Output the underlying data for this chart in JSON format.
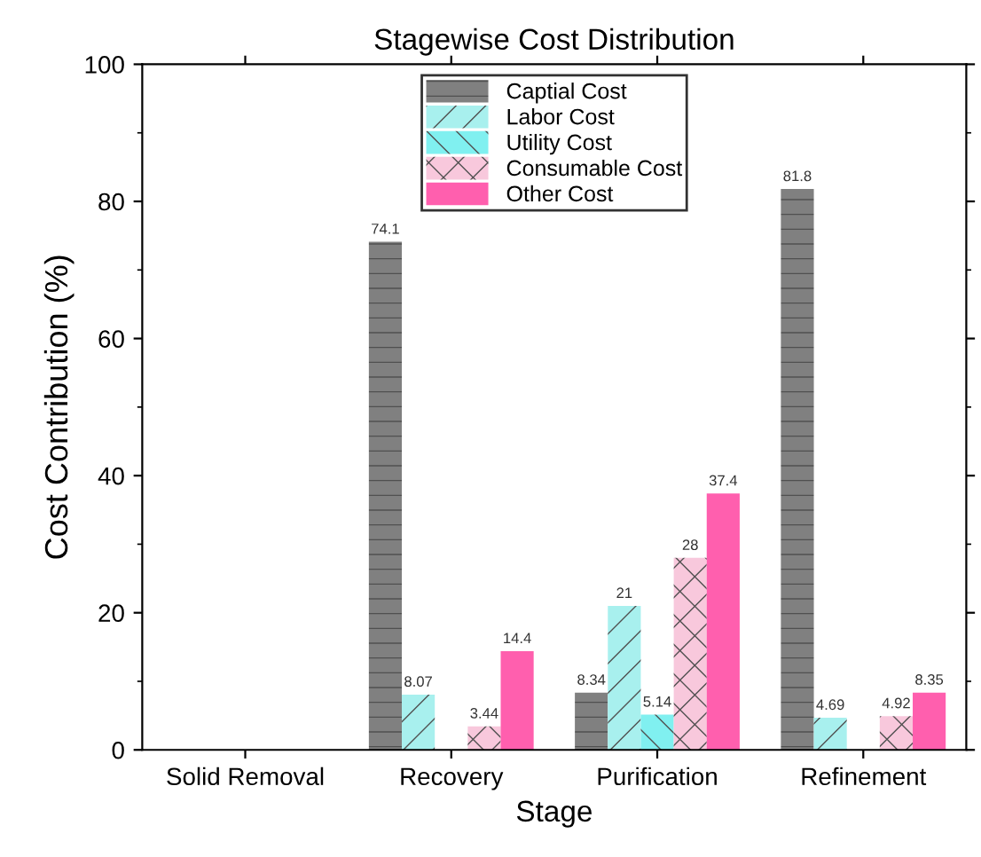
{
  "chart_data": {
    "type": "bar",
    "title": "Stagewise Cost Distribution",
    "xlabel": "Stage",
    "ylabel": "Cost Contribution (%)",
    "categories": [
      "Solid Removal",
      "Recovery",
      "Purification",
      "Refinement"
    ],
    "series": [
      {
        "name": "Captial Cost",
        "color": "#808080",
        "values": [
          null,
          74.1,
          8.34,
          81.8
        ],
        "value_labels": [
          null,
          "74.1",
          "8.34",
          "81.8"
        ]
      },
      {
        "name": "Labor Cost",
        "color": "#a8f0ee",
        "values": [
          null,
          8.07,
          21,
          4.69
        ],
        "value_labels": [
          null,
          "8.07",
          "21",
          "4.69"
        ]
      },
      {
        "name": "Utility Cost",
        "color": "#80f0f0",
        "values": [
          null,
          null,
          5.14,
          0
        ],
        "value_labels": [
          null,
          null,
          "5.14",
          null
        ]
      },
      {
        "name": "Consumable Cost",
        "color": "#f8c8dc",
        "values": [
          null,
          3.44,
          28,
          4.92
        ],
        "value_labels": [
          null,
          "3.44",
          "28",
          "4.92"
        ]
      },
      {
        "name": "Other Cost",
        "color": "#ff5fae",
        "values": [
          null,
          14.4,
          37.4,
          8.35
        ],
        "value_labels": [
          null,
          "14.4",
          "37.4",
          "8.35"
        ]
      }
    ],
    "ylim": [
      0,
      100
    ],
    "yticks": [
      0,
      20,
      40,
      60,
      80,
      100
    ],
    "grid": false,
    "legend": "top"
  }
}
